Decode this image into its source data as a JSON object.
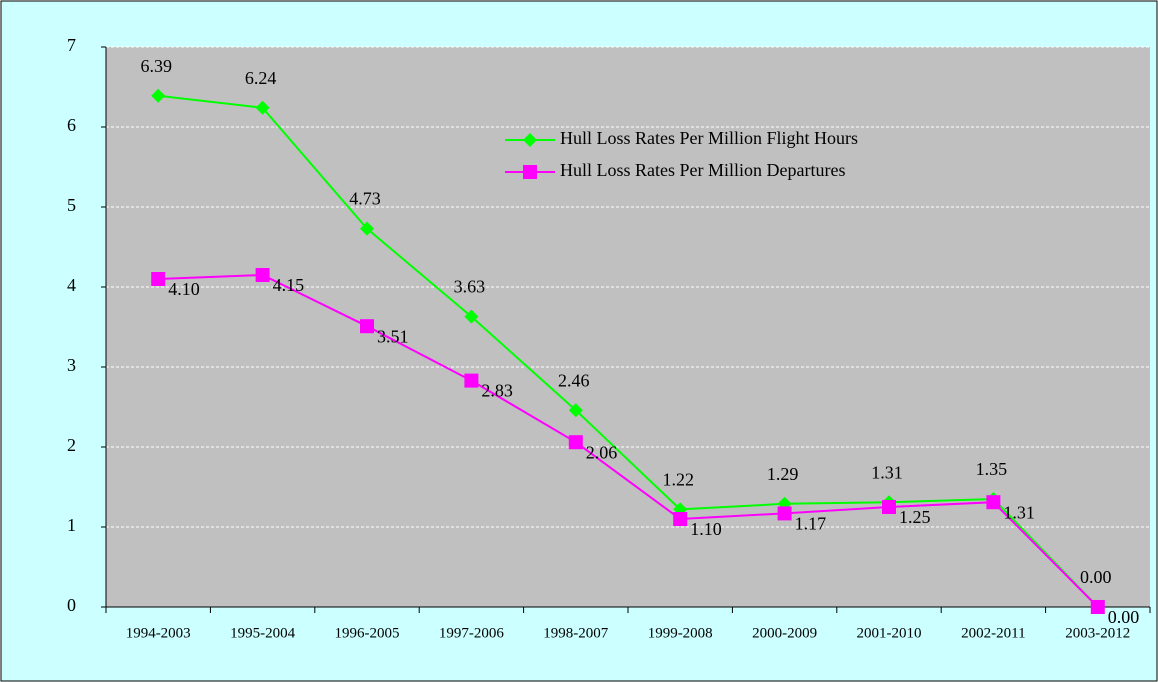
{
  "chart_data": {
    "type": "line",
    "categories": [
      "1994-2003",
      "1995-2004",
      "1996-2005",
      "1997-2006",
      "1998-2007",
      "1999-2008",
      "2000-2009",
      "2001-2010",
      "2002-2011",
      "2003-2012"
    ],
    "series": [
      {
        "name": "Hull Loss Rates Per Million Flight Hours",
        "color": "#00ff00",
        "marker": "diamond",
        "values": [
          6.39,
          6.24,
          4.73,
          3.63,
          2.46,
          1.22,
          1.29,
          1.31,
          1.35,
          0
        ],
        "value_labels": [
          "6.39",
          "6.24",
          "4.73",
          "3.63",
          "2.46",
          "1.22",
          "1.29",
          "1.31",
          "1.35",
          "0.00"
        ]
      },
      {
        "name": "Hull Loss Rates Per Million Departures",
        "color": "#ff00ff",
        "marker": "square",
        "values": [
          4.1,
          4.15,
          3.51,
          2.83,
          2.06,
          1.1,
          1.17,
          1.25,
          1.31,
          0
        ],
        "value_labels": [
          "4.10",
          "4.15",
          "3.51",
          "2.83",
          "2.06",
          "1.10",
          "1.17",
          "1.25",
          "1.31",
          "0.00"
        ]
      }
    ],
    "ylim": [
      0,
      7
    ],
    "yticks": [
      0,
      1,
      2,
      3,
      4,
      5,
      6,
      7
    ],
    "grid": true
  }
}
